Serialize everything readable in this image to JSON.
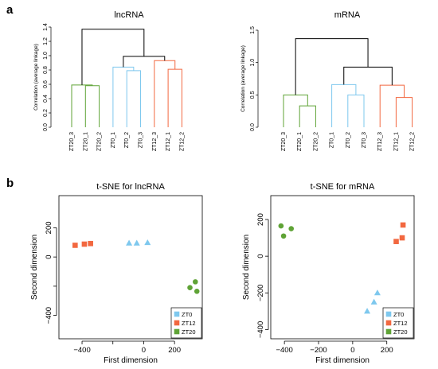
{
  "panels": {
    "a": "a",
    "b": "b"
  },
  "colors": {
    "ZT0": "#7ec8ee",
    "ZT12": "#f26840",
    "ZT20": "#5fa336",
    "root": "#000000"
  },
  "chart_data": [
    {
      "type": "dendrogram",
      "title": "lncRNA",
      "ylabel": "Correlation (average linkage)",
      "ylim": [
        0,
        1.4
      ],
      "yticks": [
        "0.0",
        "0.2",
        "0.4",
        "0.6",
        "0.8",
        "1.0",
        "1.2",
        "1.4"
      ],
      "leaves": [
        {
          "label": "ZT20_3",
          "group": "ZT20"
        },
        {
          "label": "ZT20_1",
          "group": "ZT20"
        },
        {
          "label": "ZT20_2",
          "group": "ZT20"
        },
        {
          "label": "ZT0_1",
          "group": "ZT0"
        },
        {
          "label": "ZT0_2",
          "group": "ZT0"
        },
        {
          "label": "ZT0_3",
          "group": "ZT0"
        },
        {
          "label": "ZT12_3",
          "group": "ZT12"
        },
        {
          "label": "ZT12_1",
          "group": "ZT12"
        },
        {
          "label": "ZT12_2",
          "group": "ZT12"
        }
      ],
      "merges": [
        {
          "a": 1,
          "b": 2,
          "h": 0.58,
          "group": "ZT20"
        },
        {
          "a": 0,
          "b": -1,
          "h": 0.59,
          "group": "ZT20"
        },
        {
          "a": 4,
          "b": 5,
          "h": 0.79,
          "group": "ZT0"
        },
        {
          "a": 3,
          "b": -3,
          "h": 0.84,
          "group": "ZT0"
        },
        {
          "a": 7,
          "b": 8,
          "h": 0.81,
          "group": "ZT12"
        },
        {
          "a": 6,
          "b": -5,
          "h": 0.93,
          "group": "ZT12"
        },
        {
          "a": -4,
          "b": -6,
          "h": 0.99,
          "group": "root"
        },
        {
          "a": -2,
          "b": -7,
          "h": 1.37,
          "group": "root"
        }
      ]
    },
    {
      "type": "dendrogram",
      "title": "mRNA",
      "ylabel": "Correlation (average linkage)",
      "ylim": [
        0,
        1.5
      ],
      "yticks": [
        "0.0",
        "0.5",
        "1.0",
        "1.5"
      ],
      "leaves": [
        {
          "label": "ZT20_3",
          "group": "ZT20"
        },
        {
          "label": "ZT20_1",
          "group": "ZT20"
        },
        {
          "label": "ZT20_2",
          "group": "ZT20"
        },
        {
          "label": "ZT0_1",
          "group": "ZT0"
        },
        {
          "label": "ZT0_2",
          "group": "ZT0"
        },
        {
          "label": "ZT0_3",
          "group": "ZT0"
        },
        {
          "label": "ZT12_3",
          "group": "ZT12"
        },
        {
          "label": "ZT12_1",
          "group": "ZT12"
        },
        {
          "label": "ZT12_2",
          "group": "ZT12"
        }
      ],
      "merges": [
        {
          "a": 1,
          "b": 2,
          "h": 0.33,
          "group": "ZT20"
        },
        {
          "a": 0,
          "b": -1,
          "h": 0.5,
          "group": "ZT20"
        },
        {
          "a": 4,
          "b": 5,
          "h": 0.5,
          "group": "ZT0"
        },
        {
          "a": 3,
          "b": -3,
          "h": 0.66,
          "group": "ZT0"
        },
        {
          "a": 7,
          "b": 8,
          "h": 0.46,
          "group": "ZT12"
        },
        {
          "a": 6,
          "b": -5,
          "h": 0.65,
          "group": "ZT12"
        },
        {
          "a": -4,
          "b": -6,
          "h": 0.93,
          "group": "root"
        },
        {
          "a": -2,
          "b": -7,
          "h": 1.37,
          "group": "root"
        }
      ]
    },
    {
      "type": "scatter",
      "title": "t-SNE for lncRNA",
      "xlabel": "First dimension",
      "ylabel": "Second dimension",
      "xlim": [
        -550,
        380
      ],
      "ylim": [
        -560,
        420
      ],
      "xticks": [
        -400,
        -200,
        0,
        200
      ],
      "xtick_labels": [
        "−400",
        "",
        "0",
        "200"
      ],
      "yticks": [
        -400,
        -200,
        0,
        200
      ],
      "ytick_labels": [
        "−400",
        "",
        "0",
        "200"
      ],
      "legend_position": "bottom-right",
      "series": [
        {
          "name": "ZT0",
          "marker": "triangle",
          "x": [
            -95,
            -45,
            25
          ],
          "y": [
            95,
            95,
            98
          ]
        },
        {
          "name": "ZT12",
          "marker": "square",
          "x": [
            -445,
            -385,
            -345
          ],
          "y": [
            80,
            88,
            92
          ]
        },
        {
          "name": "ZT20",
          "marker": "circle",
          "x": [
            300,
            335,
            345
          ],
          "y": [
            -210,
            -170,
            -235
          ]
        }
      ]
    },
    {
      "type": "scatter",
      "title": "t-SNE for mRNA",
      "xlabel": "First dimension",
      "ylabel": "Second dimension",
      "xlim": [
        -480,
        360
      ],
      "ylim": [
        -450,
        330
      ],
      "xticks": [
        -400,
        -200,
        0,
        200
      ],
      "xtick_labels": [
        "−400",
        "−200",
        "0",
        "200"
      ],
      "yticks": [
        -400,
        -200,
        0,
        200
      ],
      "ytick_labels": [
        "−400",
        "−200",
        "0",
        "200"
      ],
      "legend_position": "bottom-right",
      "series": [
        {
          "name": "ZT0",
          "marker": "triangle",
          "x": [
            85,
            125,
            145
          ],
          "y": [
            -300,
            -250,
            -200
          ]
        },
        {
          "name": "ZT12",
          "marker": "square",
          "x": [
            255,
            290,
            295
          ],
          "y": [
            80,
            100,
            170
          ]
        },
        {
          "name": "ZT20",
          "marker": "circle",
          "x": [
            -420,
            -405,
            -360
          ],
          "y": [
            165,
            110,
            150
          ]
        }
      ]
    }
  ]
}
